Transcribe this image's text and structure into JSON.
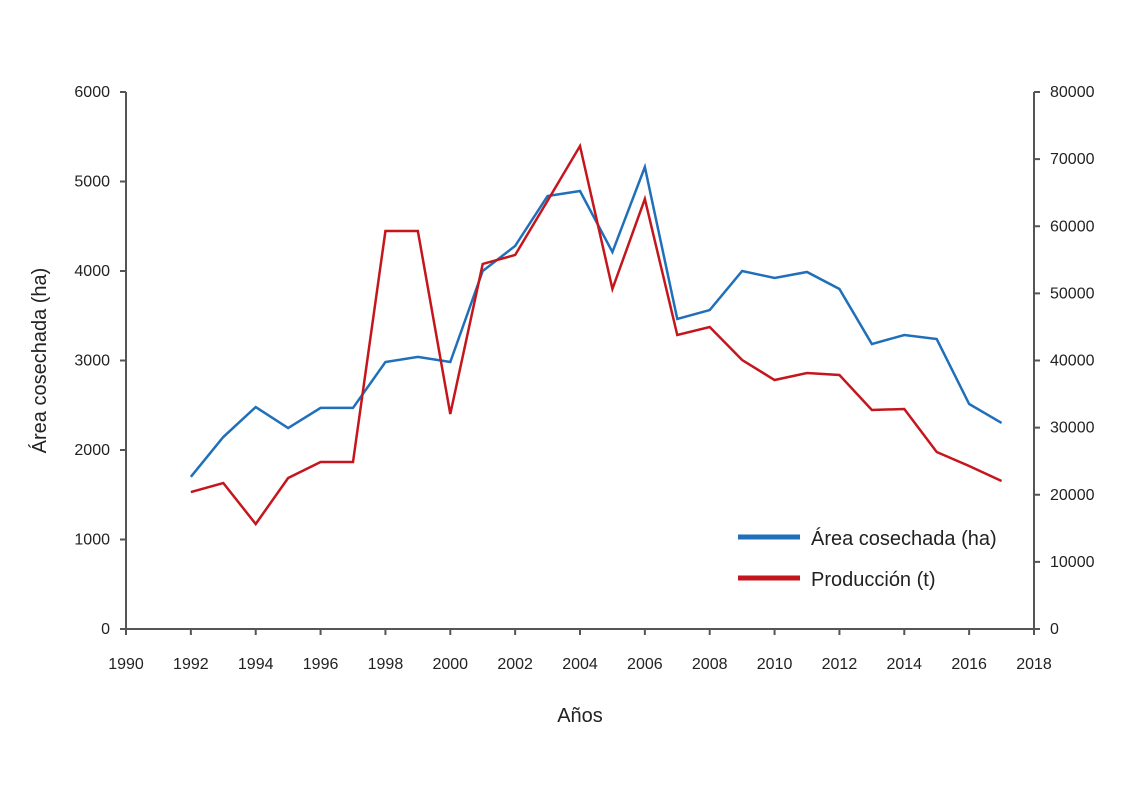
{
  "chart_data": {
    "type": "line",
    "xlabel": "Años",
    "ylabel": "Área cosechada (ha)",
    "ylabel_right": "",
    "xlim": [
      1990,
      2018
    ],
    "ylim": [
      0,
      6000
    ],
    "ylim_right": [
      0,
      80000
    ],
    "x_ticks": [
      "1990",
      "1992",
      "1994",
      "1996",
      "1998",
      "2000",
      "2002",
      "2004",
      "2006",
      "2008",
      "2010",
      "2012",
      "2014",
      "2016",
      "2018"
    ],
    "y_ticks": [
      "0",
      "1000",
      "2000",
      "3000",
      "4000",
      "5000",
      "6000"
    ],
    "y_ticks_right": [
      "0",
      "10000",
      "20000",
      "30000",
      "40000",
      "50000",
      "60000",
      "70000",
      "80000"
    ],
    "grid": false,
    "legend_placement": "bottom-right",
    "x": [
      1992,
      1993,
      1994,
      1995,
      1996,
      1997,
      1998,
      1999,
      2000,
      2001,
      2002,
      2003,
      2004,
      2005,
      2006,
      2007,
      2008,
      2009,
      2010,
      2011,
      2012,
      2013,
      2014,
      2015,
      2016,
      2017
    ],
    "series": [
      {
        "name": "Área cosechada (ha)",
        "axis": "left",
        "color": "#1f6fba",
        "values": [
          1700,
          2145,
          2480,
          2245,
          2470,
          2470,
          2983,
          3040,
          2983,
          4000,
          4280,
          4838,
          4894,
          4212,
          5162,
          3464,
          3564,
          4000,
          3922,
          3989,
          3799,
          3184,
          3285,
          3240,
          2514,
          2302
        ]
      },
      {
        "name": "Producción (t)",
        "axis": "right",
        "color": "#c4161c",
        "values": [
          20400,
          21750,
          15640,
          22500,
          24880,
          24880,
          59290,
          59290,
          32030,
          54380,
          55720,
          63800,
          71950,
          50660,
          64060,
          43800,
          44990,
          40070,
          37090,
          38140,
          37840,
          32630,
          32780,
          26370,
          24280,
          22050
        ]
      }
    ]
  }
}
